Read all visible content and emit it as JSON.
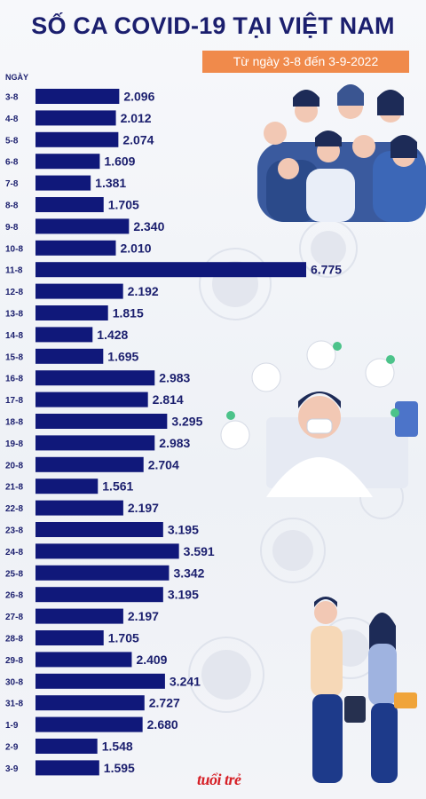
{
  "header": {
    "title": "SỐ CA COVID-19 TẠI VIỆT NAM",
    "subtitle": "Từ ngày 3-8 đến 3-9-2022"
  },
  "logo_text": "tuổi trẻ",
  "colors": {
    "bar": "#10187a",
    "title": "#1b1f6e",
    "subtitle_bg": "#f08a4b"
  },
  "chart_data": {
    "type": "bar",
    "orientation": "horizontal",
    "title": "SỐ CA COVID-19 TẠI VIỆT NAM",
    "subtitle": "Từ ngày 3-8 đến 3-9-2022",
    "xlabel": "",
    "ylabel": "NGÀY",
    "categories": [
      "3-8",
      "4-8",
      "5-8",
      "6-8",
      "7-8",
      "8-8",
      "9-8",
      "10-8",
      "11-8",
      "12-8",
      "13-8",
      "14-8",
      "15-8",
      "16-8",
      "17-8",
      "18-8",
      "19-8",
      "20-8",
      "21-8",
      "22-8",
      "23-8",
      "24-8",
      "25-8",
      "26-8",
      "27-8",
      "28-8",
      "29-8",
      "30-8",
      "31-8",
      "1-9",
      "2-9",
      "3-9"
    ],
    "values": [
      2096,
      2012,
      2074,
      1609,
      1381,
      1705,
      2340,
      2010,
      6775,
      2192,
      1815,
      1428,
      1695,
      2983,
      2814,
      3295,
      2983,
      2704,
      1561,
      2197,
      3195,
      3591,
      3342,
      3195,
      2197,
      1705,
      2409,
      3241,
      2727,
      2680,
      1548,
      1595
    ],
    "value_labels": [
      "2.096",
      "2.012",
      "2.074",
      "1.609",
      "1.381",
      "1.705",
      "2.340",
      "2.010",
      "6.775",
      "2.192",
      "1.815",
      "1.428",
      "1.695",
      "2.983",
      "2.814",
      "3.295",
      "2.983",
      "2.704",
      "1.561",
      "2.197",
      "3.195",
      "3.591",
      "3.342",
      "3.195",
      "2.197",
      "1.705",
      "2.409",
      "3.241",
      "2.727",
      "2.680",
      "1.548",
      "1.595"
    ],
    "xlim": [
      0,
      6775
    ],
    "grid": false,
    "legend": "none"
  }
}
